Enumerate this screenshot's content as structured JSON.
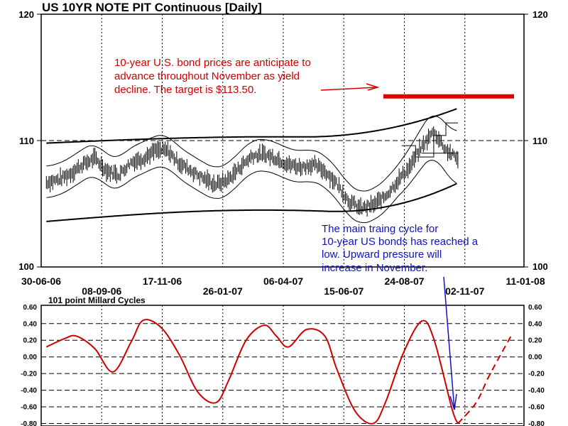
{
  "chart_data": [
    {
      "type": "line",
      "title": "US 10YR NOTE PIT Continuous  [Daily]",
      "yticks": [
        100,
        110,
        120
      ],
      "ylim": [
        100,
        120
      ],
      "grid": true,
      "x_ticks_row1": [
        "30-06-06",
        "17-11-06",
        "06-04-07",
        "24-08-07",
        "11-01-08"
      ],
      "x_ticks_row2": [
        "08-09-06",
        "26-01-07",
        "15-06-07",
        "02-11-07"
      ],
      "price_series": {
        "x": [
          "06-07-06",
          "20-07-06",
          "03-08-06",
          "17-08-06",
          "31-08-06",
          "14-09-06",
          "28-09-06",
          "12-10-06",
          "26-10-06",
          "09-11-06",
          "23-11-06",
          "07-12-06",
          "21-12-06",
          "04-01-07",
          "18-01-07",
          "01-02-07",
          "15-02-07",
          "01-03-07",
          "15-03-07",
          "29-03-07",
          "12-04-07",
          "26-04-07",
          "10-05-07",
          "24-05-07",
          "07-06-07",
          "21-06-07",
          "05-07-07",
          "19-07-07",
          "02-08-07",
          "16-08-07",
          "30-08-07",
          "13-09-07",
          "27-09-07",
          "11-10-07",
          "25-10-07"
        ],
        "y": [
          106.7,
          106.9,
          107.4,
          108.1,
          108.6,
          107.6,
          107.3,
          108.3,
          108.6,
          109.2,
          109.2,
          108.2,
          107.6,
          107.0,
          106.5,
          106.9,
          107.9,
          108.8,
          108.9,
          108.6,
          108.1,
          107.9,
          108.1,
          107.6,
          106.6,
          105.2,
          104.6,
          104.9,
          105.6,
          106.8,
          107.9,
          109.5,
          110.7,
          109.3,
          108.5
        ]
      },
      "channel_outer_upper_end": 113.1,
      "channel_outer_lower_end": 106.9,
      "target_level": 113.5,
      "annotation_red": [
        "10-year U.S. bond prices are anticipate to",
        "advance throughout November as yield",
        "decline.  The target is $113.50."
      ],
      "annotation_blue": [
        "The main traing cycle for",
        "10-year US bonds has reached a",
        "low.  Upward pressure will",
        "increase in November."
      ]
    },
    {
      "type": "line",
      "title": "101 point Millard Cycles",
      "yticks": [
        0.6,
        0.4,
        0.2,
        0.0,
        -0.2,
        -0.4,
        -0.6,
        -0.8
      ],
      "ytick_labels": [
        "0.60",
        "0.40",
        "0.20",
        "0.00",
        "-0.20",
        "-0.40",
        "-0.60",
        "-0.80"
      ],
      "ylim": [
        -0.83,
        0.62
      ],
      "grid": true,
      "series": [
        {
          "x": [
            "06-07-06",
            "27-07-06",
            "10-08-06",
            "31-08-06",
            "21-09-06",
            "12-10-06",
            "26-10-06",
            "16-11-06",
            "07-12-06",
            "28-12-06",
            "18-01-07",
            "01-02-07",
            "22-02-07",
            "15-03-07",
            "29-03-07",
            "12-04-07",
            "03-05-07",
            "24-05-07",
            "07-06-07",
            "28-06-07",
            "19-07-07",
            "02-08-07",
            "23-08-07",
            "13-09-07",
            "27-09-07",
            "18-10-07",
            "25-10-07"
          ],
          "y": [
            0.12,
            0.22,
            0.25,
            0.1,
            -0.18,
            0.18,
            0.44,
            0.35,
            0.02,
            -0.42,
            -0.55,
            -0.3,
            0.2,
            0.38,
            0.25,
            0.12,
            0.33,
            0.25,
            -0.15,
            -0.65,
            -0.8,
            -0.55,
            0.05,
            0.43,
            0.22,
            -0.62,
            -0.8
          ]
        },
        {
          "dashed": true,
          "x": [
            "25-10-07",
            "15-11-07",
            "29-11-07",
            "13-12-07",
            "27-12-07"
          ],
          "y": [
            -0.8,
            -0.55,
            -0.25,
            0.02,
            0.28
          ]
        }
      ]
    }
  ]
}
